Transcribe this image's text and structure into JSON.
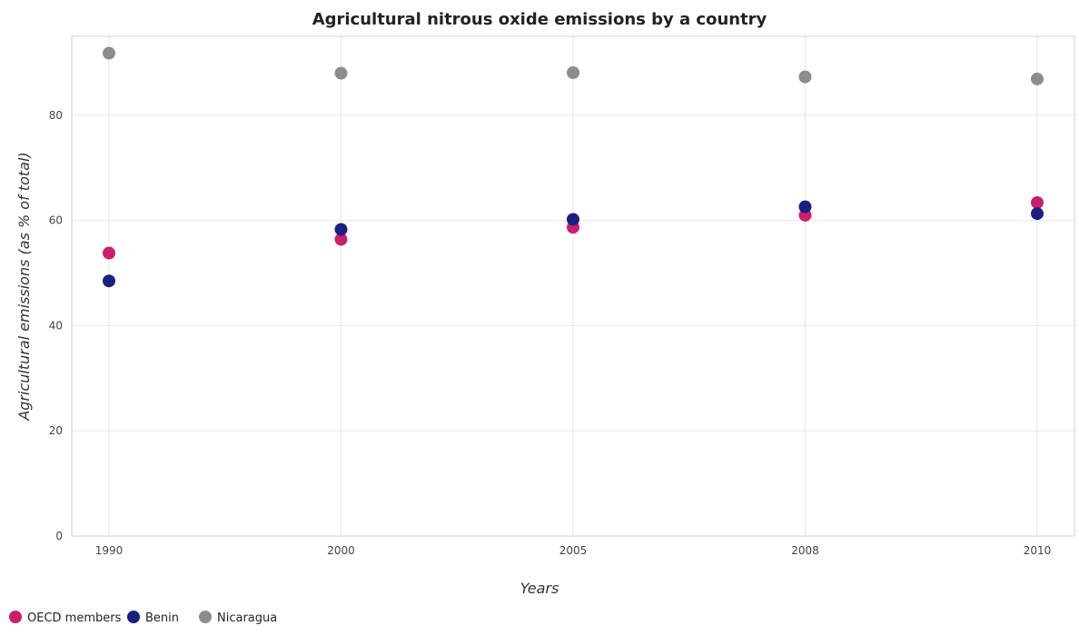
{
  "chart_data": {
    "type": "scatter",
    "title": "Agricultural nitrous oxide emissions by a country",
    "xlabel": "Years",
    "ylabel": "Agricultural emissions (as % of total)",
    "categories": [
      "1990",
      "2000",
      "2005",
      "2008",
      "2010"
    ],
    "ylim": [
      0,
      95
    ],
    "yticks": [
      0,
      20,
      40,
      60,
      80
    ],
    "grid": true,
    "legend_position": "bottom-left",
    "series": [
      {
        "name": "OECD members",
        "color": "#cc1e6e",
        "values": [
          53.8,
          56.4,
          58.7,
          61.0,
          63.4
        ]
      },
      {
        "name": "Benin",
        "color": "#1a2080",
        "values": [
          48.5,
          58.3,
          60.2,
          62.6,
          61.3
        ]
      },
      {
        "name": "Nicaragua",
        "color": "#8c8c8c",
        "values": [
          91.8,
          88.0,
          88.1,
          87.3,
          86.9
        ]
      }
    ]
  }
}
